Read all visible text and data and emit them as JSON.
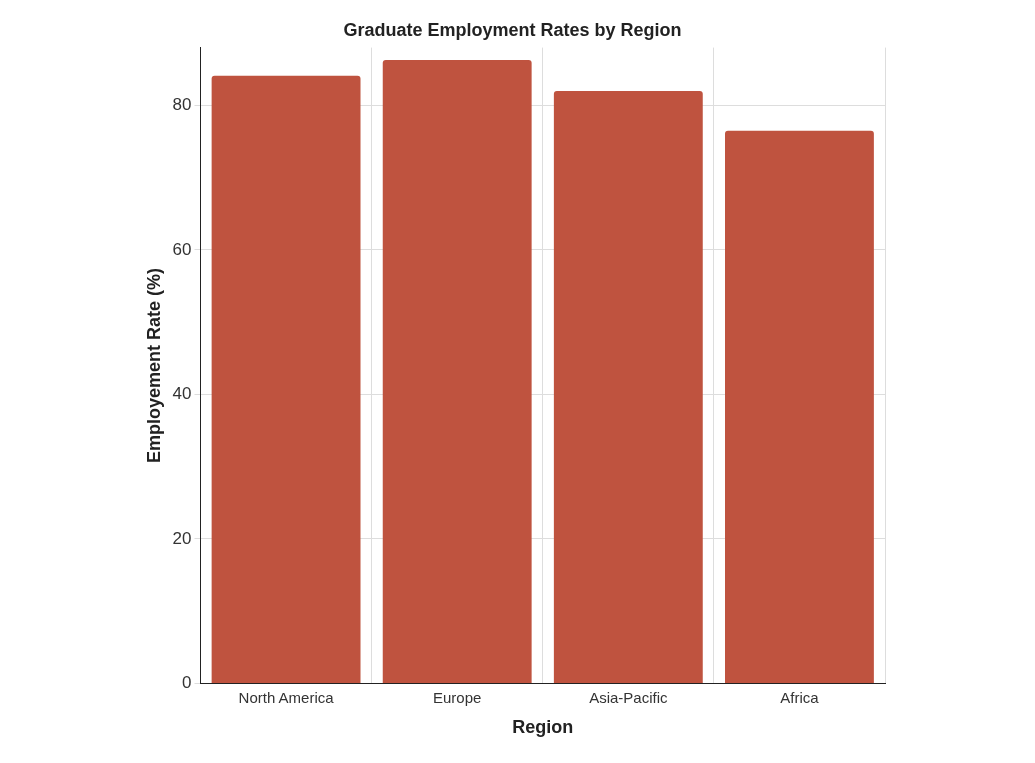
{
  "chart_data": {
    "type": "bar",
    "title": "Graduate Employment Rates by Region",
    "xlabel": "Region",
    "ylabel": "Employement Rate (%)",
    "categories": [
      "North America",
      "Europe",
      "Asia-Pacific",
      "Africa"
    ],
    "values": [
      84.1,
      86.3,
      82.0,
      76.5
    ],
    "color": "#bf533f",
    "ylim": [
      0,
      88
    ],
    "yticks": [
      0,
      20,
      40,
      60,
      80
    ],
    "grid": true
  }
}
